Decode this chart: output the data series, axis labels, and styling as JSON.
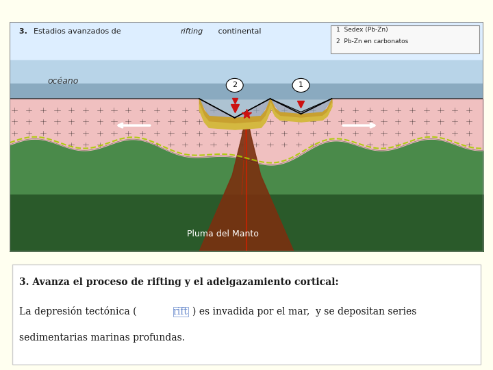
{
  "bg_color": "#fffff0",
  "diagram_bg": "#ffffff",
  "title": "3. Estadios avanzados de rifting continental",
  "title_style_prefix": "3. ",
  "title_style_smallcaps": "Estadios avanzados de ",
  "title_italic": "rifting",
  "title_rest": " continental",
  "legend_items": [
    "1  Sedex (Pb-Zn)",
    "2  Pb-Zn en carbonatos"
  ],
  "ocean_label": "océano",
  "pluma_label": "Pluma del Manto",
  "text_heading": "3. Avanza el proceso de rifting y el adelgazamiento cortical:",
  "text_body_pre": "La depresión tectónica (",
  "text_body_link": "rift",
  "text_body_post": ") es invadida por el mar,  y se depositan series\nsedimentarias marinas profundas.",
  "colors": {
    "sky_blue": "#c8dff0",
    "ocean_blue": "#7baac8",
    "ocean_deep": "#8090b0",
    "crust_pink": "#f0c8c8",
    "crust_pattern": "#c87070",
    "mantle_green_light": "#5a9a5a",
    "mantle_green_dark": "#2d6b2d",
    "mantle_plume": "#8b3a1a",
    "mantle_plume_dark": "#6b2a0a",
    "sediment_yellow": "#d4aa50",
    "lava_red": "#cc1111",
    "text_dark": "#1a1a1a",
    "link_blue": "#6688cc",
    "border_gray": "#aaaaaa"
  }
}
